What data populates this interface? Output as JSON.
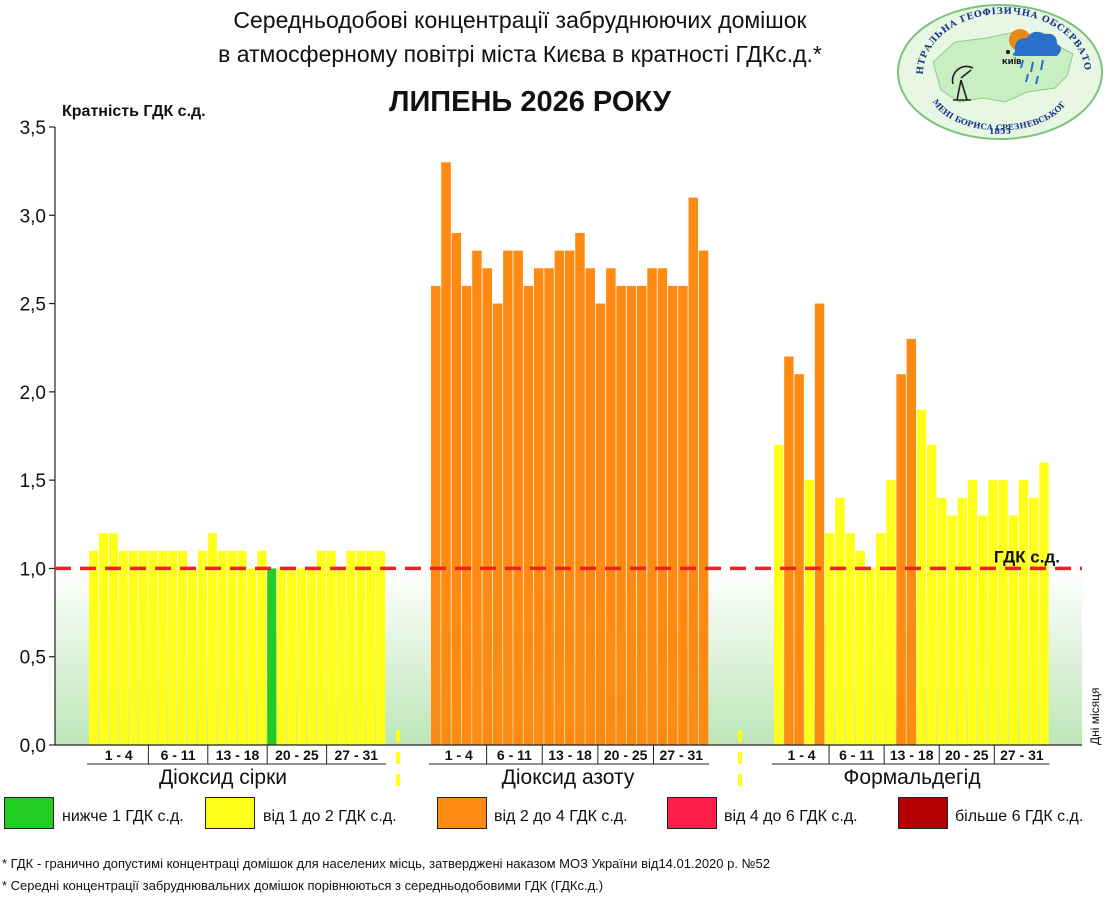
{
  "header": {
    "title_line1": "Середньодобові концентрації забруднюючих домішок",
    "title_line2": "в атмосферному повітрі міста Києва в кратності ГДКс.д.*",
    "subtitle": "ЛИПЕНЬ 2026 РОКУ"
  },
  "logo": {
    "arc_text": "ЦЕНТРАЛЬНА ГЕОФІЗИЧНА ОБСЕРВАТОРІЯ",
    "bottom_text": "ІМЕНІ БОРИСА СРЕЗНЕВСЬКОГО",
    "year": "1855",
    "city": "КИЇВ",
    "colors": {
      "ellipse": "#e8f7e4",
      "map": "#c9eec1",
      "cloud": "#2a6fc9",
      "sun": "#e8871c"
    }
  },
  "legend": [
    {
      "label": "нижче 1 ГДК с.д.",
      "color": "#22cc22"
    },
    {
      "label": "від 1 до 2 ГДК с.д.",
      "color": "#ffff1a"
    },
    {
      "label": "від 2 до 4 ГДК с.д.",
      "color": "#ff8a12"
    },
    {
      "label": "від 4 до 6 ГДК с.д.",
      "color": "#ff1f4b"
    },
    {
      "label": "більше 6 ГДК с.д.",
      "color": "#b30000"
    }
  ],
  "footnotes": {
    "line1": "* ГДК - гранично допустимі концентраці домішок для населених місць, затверджені наказом МОЗ України від14.01.2020 р. №52",
    "line2": "* Середні концентрації забруднювальних домішок порівнюються з середньодобовими  ГДК (ГДКс.д.)"
  },
  "chart_data": {
    "type": "bar",
    "ylabel": "Кратність ГДК с.д.",
    "xlabel": "Дні місяця",
    "ylim": [
      0,
      3.5
    ],
    "yticks": [
      "0,0",
      "0,5",
      "1,0",
      "1,5",
      "2,0",
      "2,5",
      "3,0",
      "3,5"
    ],
    "threshold": {
      "value": 1.0,
      "label": "ГДК с.д.",
      "color": "#ee2222"
    },
    "day_group_labels": [
      "1 - 4",
      "6 - 11",
      "13 - 18",
      "20 - 25",
      "27 - 31"
    ],
    "series": [
      {
        "name": "Діоксид сірки",
        "values": [
          1.1,
          1.2,
          1.2,
          1.1,
          1.1,
          1.1,
          1.1,
          1.1,
          1.1,
          1.1,
          1.0,
          1.1,
          1.2,
          1.1,
          1.1,
          1.1,
          1.0,
          1.1,
          1.0,
          1.0,
          1.0,
          1.0,
          1.0,
          1.1,
          1.1,
          1.0,
          1.1,
          1.1,
          1.1,
          1.1
        ],
        "colors": [
          "#ffff1a",
          "#ffff1a",
          "#ffff1a",
          "#ffff1a",
          "#ffff1a",
          "#ffff1a",
          "#ffff1a",
          "#ffff1a",
          "#ffff1a",
          "#ffff1a",
          "#ffff1a",
          "#ffff1a",
          "#ffff1a",
          "#ffff1a",
          "#ffff1a",
          "#ffff1a",
          "#ffff1a",
          "#ffff1a",
          "#22cc22",
          "#ffff1a",
          "#ffff1a",
          "#ffff1a",
          "#ffff1a",
          "#ffff1a",
          "#ffff1a",
          "#ffff1a",
          "#ffff1a",
          "#ffff1a",
          "#ffff1a",
          "#ffff1a"
        ]
      },
      {
        "name": "Діоксид азоту",
        "values": [
          2.6,
          3.3,
          2.9,
          2.6,
          2.8,
          2.7,
          2.5,
          2.8,
          2.8,
          2.6,
          2.7,
          2.7,
          2.8,
          2.8,
          2.9,
          2.7,
          2.5,
          2.7,
          2.6,
          2.6,
          2.6,
          2.7,
          2.7,
          2.6,
          2.6,
          3.1,
          2.8
        ],
        "colors": [
          "#ff8a12",
          "#ff8a12",
          "#ff8a12",
          "#ff8a12",
          "#ff8a12",
          "#ff8a12",
          "#ff8a12",
          "#ff8a12",
          "#ff8a12",
          "#ff8a12",
          "#ff8a12",
          "#ff8a12",
          "#ff8a12",
          "#ff8a12",
          "#ff8a12",
          "#ff8a12",
          "#ff8a12",
          "#ff8a12",
          "#ff8a12",
          "#ff8a12",
          "#ff8a12",
          "#ff8a12",
          "#ff8a12",
          "#ff8a12",
          "#ff8a12",
          "#ff8a12",
          "#ff8a12"
        ]
      },
      {
        "name": "Формальдегід",
        "values": [
          1.7,
          2.2,
          2.1,
          1.5,
          2.5,
          1.2,
          1.4,
          1.2,
          1.1,
          1.0,
          1.2,
          1.5,
          2.1,
          2.3,
          1.9,
          1.7,
          1.4,
          1.3,
          1.4,
          1.5,
          1.3,
          1.5,
          1.5,
          1.3,
          1.5,
          1.4,
          1.6
        ],
        "colors": [
          "#ffff1a",
          "#ff8a12",
          "#ff8a12",
          "#ffff1a",
          "#ff8a12",
          "#ffff1a",
          "#ffff1a",
          "#ffff1a",
          "#ffff1a",
          "#ffff1a",
          "#ffff1a",
          "#ffff1a",
          "#ff8a12",
          "#ff8a12",
          "#ffff1a",
          "#ffff1a",
          "#ffff1a",
          "#ffff1a",
          "#ffff1a",
          "#ffff1a",
          "#ffff1a",
          "#ffff1a",
          "#ffff1a",
          "#ffff1a",
          "#ffff1a",
          "#ffff1a",
          "#ffff1a"
        ]
      }
    ]
  }
}
